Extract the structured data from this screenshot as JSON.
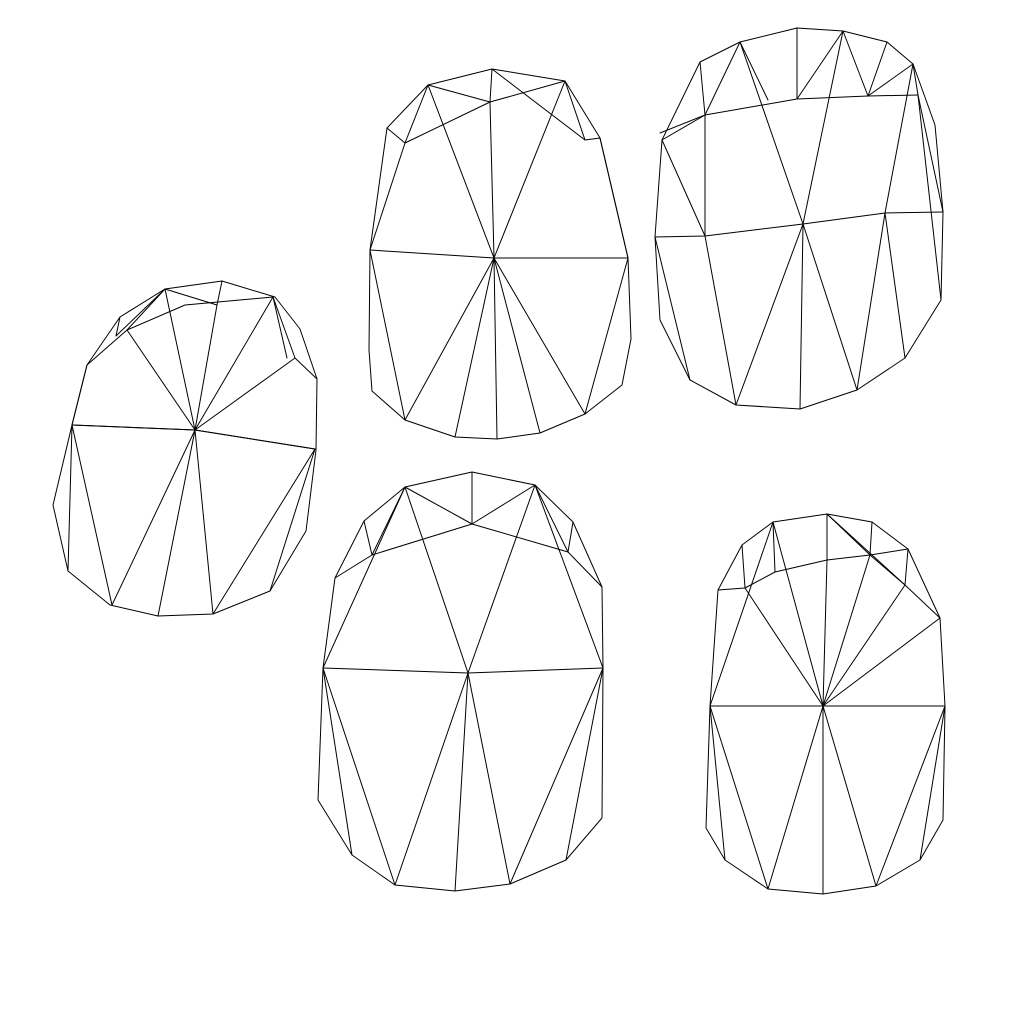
{
  "background": "#ffffff",
  "line_color": "#000000",
  "meshes": [
    {
      "name": "mesh-left",
      "label": ""
    },
    {
      "name": "mesh-top-center",
      "label": ""
    },
    {
      "name": "mesh-top-right",
      "label": ""
    },
    {
      "name": "mesh-bottom-center",
      "label": ""
    },
    {
      "name": "mesh-bottom-right",
      "label": ""
    }
  ]
}
